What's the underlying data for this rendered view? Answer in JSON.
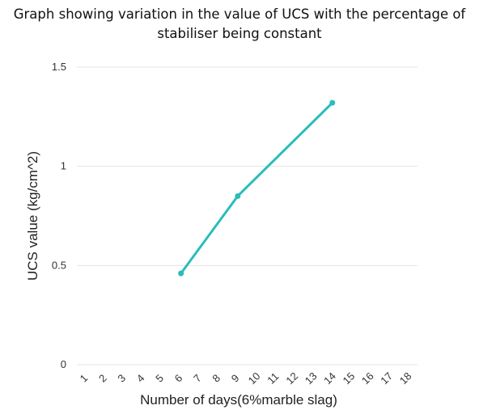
{
  "chart_data": {
    "type": "line",
    "title_line1": "Graph showing variation in the value of UCS with the percentage of",
    "title_line2": "stabiliser being constant",
    "xlabel": "Number of days(6%marble slag)",
    "ylabel": "UCS value (kg/cm^2)",
    "categories": [
      "1",
      "2",
      "3",
      "4",
      "5",
      "6",
      "7",
      "8",
      "9",
      "10",
      "11",
      "12",
      "13",
      "14",
      "15",
      "16",
      "17",
      "18"
    ],
    "ylim": [
      0,
      1.5
    ],
    "yticks": [
      {
        "value": 0,
        "label": "0"
      },
      {
        "value": 0.5,
        "label": "0.5"
      },
      {
        "value": 1,
        "label": "1"
      },
      {
        "value": 1.5,
        "label": "1.5"
      }
    ],
    "series": [
      {
        "points": [
          {
            "x": "6",
            "y": 0.46
          },
          {
            "x": "9",
            "y": 0.85
          },
          {
            "x": "14",
            "y": 1.32
          }
        ]
      }
    ],
    "line_color": "#2bbcbc",
    "grid": true,
    "grid_color": "#e3e3e3"
  }
}
